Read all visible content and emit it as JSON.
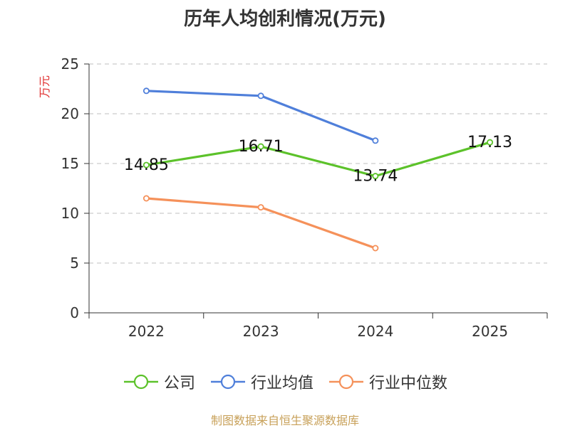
{
  "chart_data": {
    "type": "line",
    "title": "历年人均创利情况(万元)",
    "ylabel": "万元",
    "xlabel": "",
    "categories": [
      "2022",
      "2023",
      "2024",
      "2025"
    ],
    "ylim": [
      0,
      25
    ],
    "yticks": [
      0,
      5,
      10,
      15,
      20,
      25
    ],
    "grid": true,
    "legend_position": "bottom",
    "series": [
      {
        "name": "公司",
        "color": "#5cc22a",
        "values": [
          14.85,
          16.71,
          13.74,
          17.13
        ],
        "labels": [
          "14.85",
          "16.71",
          "13.74",
          "17.13"
        ]
      },
      {
        "name": "行业均值",
        "color": "#4f7fda",
        "values": [
          22.3,
          21.8,
          17.3,
          null
        ],
        "labels": []
      },
      {
        "name": "行业中位数",
        "color": "#f5915a",
        "values": [
          11.5,
          10.6,
          6.5,
          null
        ],
        "labels": []
      }
    ]
  },
  "colors": {
    "unit_label": "#e03030",
    "source": "#c8a15a",
    "grid": "#cccccc",
    "axis": "#333333"
  },
  "source_text": "制图数据来自恒生聚源数据库"
}
